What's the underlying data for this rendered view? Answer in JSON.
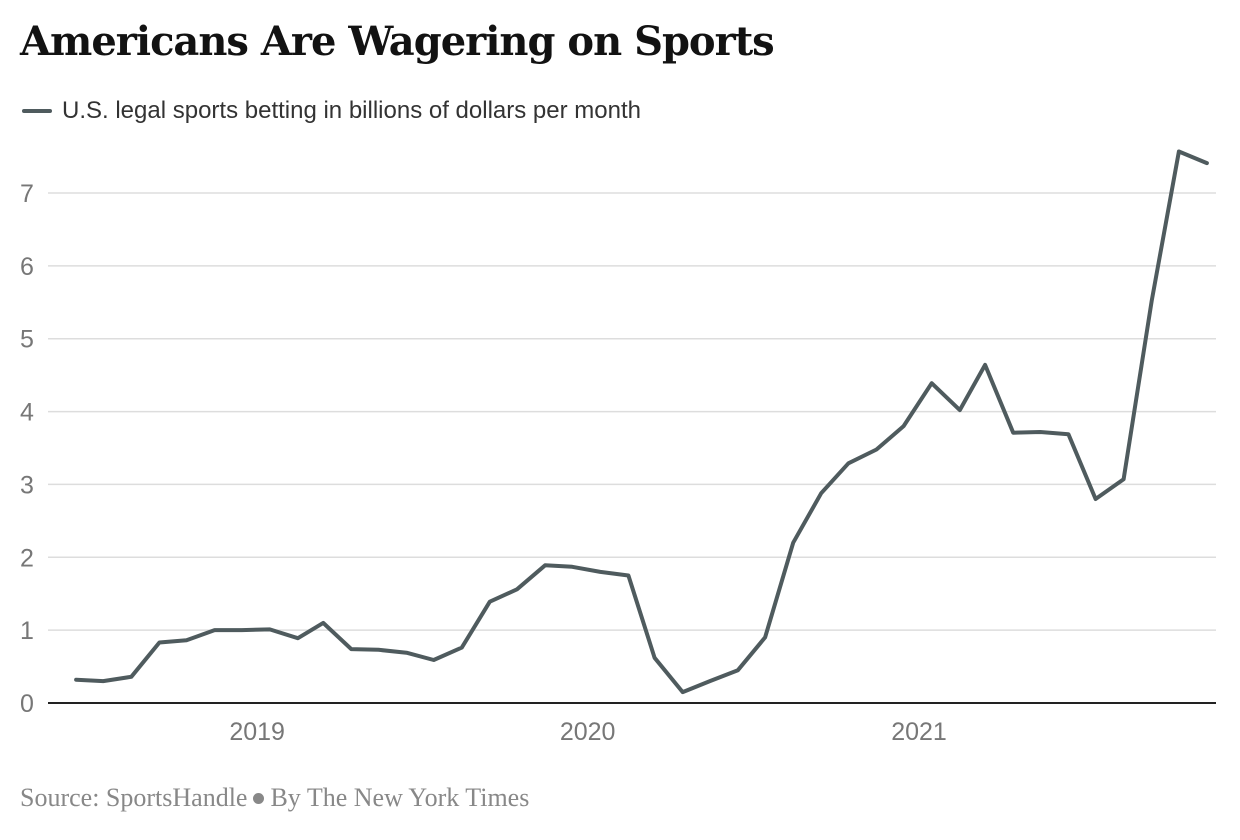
{
  "header": {
    "title": "Americans Are Wagering on Sports"
  },
  "legend": {
    "label": "U.S. legal sports betting in billions of dollars per month",
    "icon": "line-swatch-icon"
  },
  "footer": {
    "source": "Source: SportsHandle",
    "byline": "By The New York Times",
    "separator_icon": "bullet-icon"
  },
  "colors": {
    "series": "#4f5b5e",
    "grid": "#dddddd",
    "axis": "#222222",
    "tick_label": "#777777"
  },
  "chart_data": {
    "type": "line",
    "title": "Americans Are Wagering on Sports",
    "xlabel": "",
    "ylabel": "",
    "grid": true,
    "legend_position": "top-left",
    "y_ticks": [
      0,
      1,
      2,
      3,
      4,
      5,
      6,
      7
    ],
    "ylim": [
      0,
      7.7
    ],
    "xlim": [
      "2018-05-15",
      "2021-11-25"
    ],
    "x_ticks": [
      {
        "label": "2019",
        "x": "2019-01-01"
      },
      {
        "label": "2020",
        "x": "2020-01-01"
      },
      {
        "label": "2021",
        "x": "2021-01-01"
      }
    ],
    "series": [
      {
        "name": "U.S. legal sports betting in billions of dollars per month",
        "x": [
          "2018-06",
          "2018-07",
          "2018-08",
          "2018-09",
          "2018-10",
          "2018-11",
          "2018-12",
          "2019-01",
          "2019-02",
          "2019-03",
          "2019-04",
          "2019-05",
          "2019-06",
          "2019-07",
          "2019-08",
          "2019-09",
          "2019-10",
          "2019-11",
          "2019-12",
          "2020-01",
          "2020-02",
          "2020-03",
          "2020-04",
          "2020-05",
          "2020-06",
          "2020-07",
          "2020-08",
          "2020-09",
          "2020-10",
          "2020-11",
          "2020-12",
          "2021-01",
          "2021-02",
          "2021-03",
          "2021-04",
          "2021-05",
          "2021-06",
          "2021-07",
          "2021-08",
          "2021-09",
          "2021-10",
          "2021-11"
        ],
        "values": [
          0.32,
          0.3,
          0.36,
          0.83,
          0.86,
          1.0,
          1.0,
          1.01,
          0.89,
          1.1,
          0.74,
          0.73,
          0.69,
          0.59,
          0.76,
          1.39,
          1.56,
          1.89,
          1.87,
          1.8,
          1.75,
          0.62,
          0.15,
          0.3,
          0.45,
          0.9,
          2.2,
          2.88,
          3.29,
          3.48,
          3.8,
          4.39,
          4.02,
          4.64,
          3.71,
          3.72,
          3.69,
          2.8,
          3.07,
          5.52,
          7.57,
          7.41
        ]
      }
    ]
  }
}
